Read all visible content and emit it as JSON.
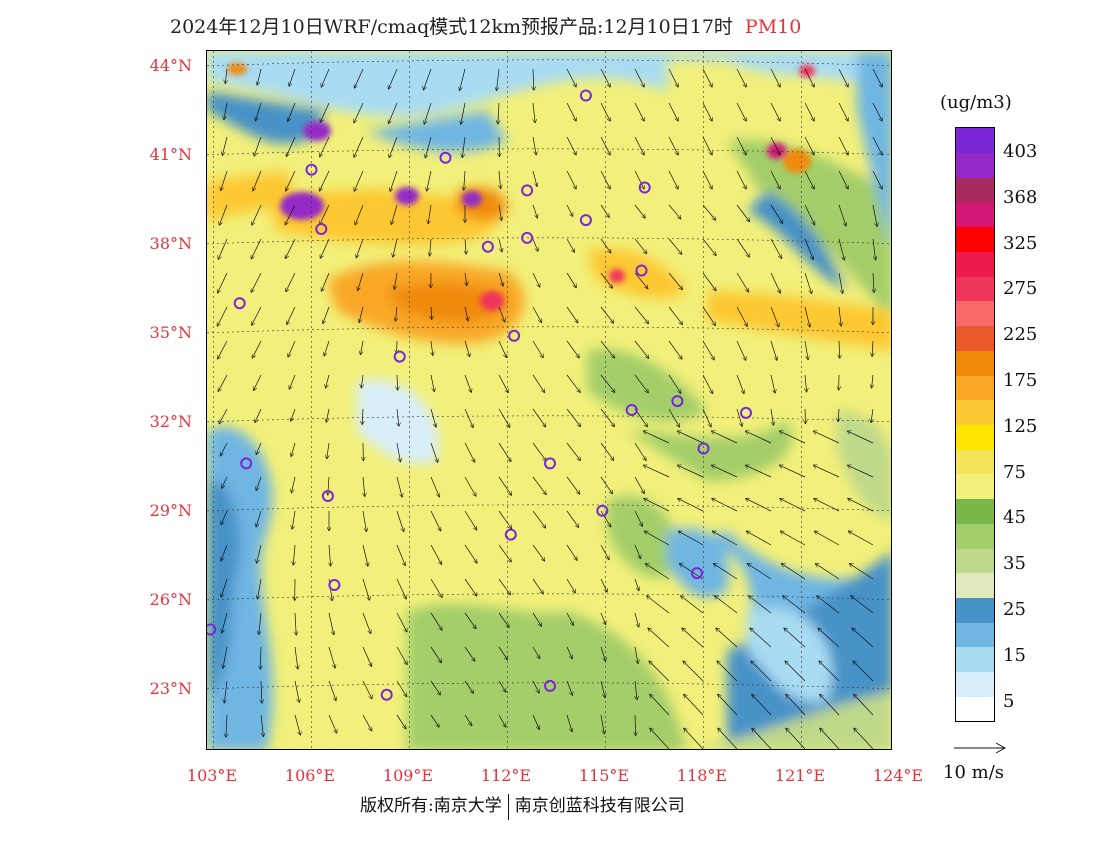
{
  "header": {
    "title": "2024年12月10日WRF/cmaq模式12km预报产品:12月10日17时",
    "variable": "PM10"
  },
  "axes": {
    "lat_labels": [
      "44°N",
      "41°N",
      "38°N",
      "35°N",
      "32°N",
      "29°N",
      "26°N",
      "23°N"
    ],
    "lon_labels": [
      "103°E",
      "106°E",
      "109°E",
      "112°E",
      "115°E",
      "118°E",
      "121°E",
      "124°E"
    ]
  },
  "legend": {
    "units": "(ug/m3)",
    "labels": [
      "403",
      "368",
      "325",
      "275",
      "225",
      "175",
      "125",
      "75",
      "45",
      "35",
      "25",
      "15",
      "5"
    ],
    "colors": [
      "#ffffff",
      "#d8eefa",
      "#a9dcf3",
      "#70b6e3",
      "#4792c7",
      "#dfe9bb",
      "#bfd98a",
      "#a3ce69",
      "#78b84a",
      "#f2f07a",
      "#f4e45a",
      "#ffe600",
      "#fdc832",
      "#f9a825",
      "#f08a0a",
      "#e85a2a",
      "#fb6a6a",
      "#f0365a",
      "#ec1b4c",
      "#ff0000",
      "#d21877",
      "#a92a5e",
      "#9429c7",
      "#7a27d6"
    ],
    "vector_label": "10 m/s"
  },
  "footer": {
    "credit_left": "版权所有:南京大学",
    "credit_right": "南京创蓝科技有限公司"
  },
  "stations": [
    {
      "lon": 114.4,
      "lat": 43.0
    },
    {
      "lon": 106.0,
      "lat": 40.5
    },
    {
      "lon": 110.1,
      "lat": 40.9
    },
    {
      "lon": 112.6,
      "lat": 39.8
    },
    {
      "lon": 116.2,
      "lat": 39.9
    },
    {
      "lon": 114.4,
      "lat": 38.8
    },
    {
      "lon": 106.3,
      "lat": 38.5
    },
    {
      "lon": 111.4,
      "lat": 37.9
    },
    {
      "lon": 112.6,
      "lat": 38.2
    },
    {
      "lon": 116.1,
      "lat": 37.1
    },
    {
      "lon": 103.8,
      "lat": 36.0
    },
    {
      "lon": 112.2,
      "lat": 34.9
    },
    {
      "lon": 108.7,
      "lat": 34.2
    },
    {
      "lon": 115.8,
      "lat": 32.4
    },
    {
      "lon": 117.2,
      "lat": 32.7
    },
    {
      "lon": 119.3,
      "lat": 32.3
    },
    {
      "lon": 118.0,
      "lat": 31.1
    },
    {
      "lon": 113.3,
      "lat": 30.6
    },
    {
      "lon": 104.0,
      "lat": 30.6
    },
    {
      "lon": 106.5,
      "lat": 29.5
    },
    {
      "lon": 114.9,
      "lat": 29.0
    },
    {
      "lon": 112.1,
      "lat": 28.2
    },
    {
      "lon": 117.8,
      "lat": 26.9
    },
    {
      "lon": 106.7,
      "lat": 26.5
    },
    {
      "lon": 102.9,
      "lat": 25.0
    },
    {
      "lon": 113.3,
      "lat": 23.1
    },
    {
      "lon": 108.3,
      "lat": 22.8
    }
  ]
}
